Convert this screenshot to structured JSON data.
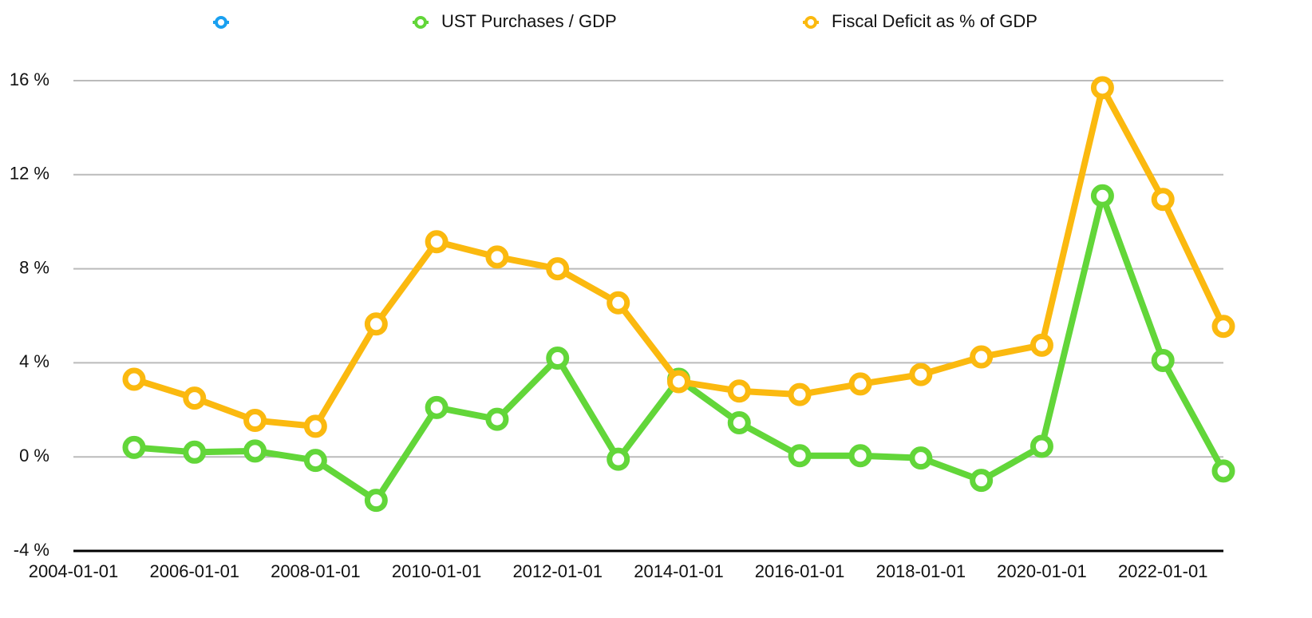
{
  "chart_data": {
    "type": "line",
    "x": [
      "2005-01-01",
      "2006-01-01",
      "2007-01-01",
      "2008-01-01",
      "2009-01-01",
      "2010-01-01",
      "2011-01-01",
      "2012-01-01",
      "2013-01-01",
      "2014-01-01",
      "2015-01-01",
      "2016-01-01",
      "2017-01-01",
      "2018-01-01",
      "2019-01-01",
      "2020-01-01",
      "2021-01-01",
      "2022-01-01",
      "2023-01-01"
    ],
    "series": [
      {
        "color": "#1aa0f0",
        "values": [
          null,
          null,
          null,
          null,
          null,
          null,
          null,
          null,
          null,
          null,
          null,
          null,
          null,
          null,
          null,
          null,
          null,
          null,
          null
        ]
      },
      {
        "name": "UST Purchases / GDP",
        "color": "#62d639",
        "values": [
          0.4,
          0.2,
          0.25,
          -0.15,
          -1.85,
          2.1,
          1.6,
          4.2,
          -0.1,
          3.3,
          1.45,
          0.05,
          0.05,
          -0.05,
          -1.0,
          0.45,
          11.1,
          4.1,
          -0.6
        ]
      },
      {
        "name": "Fiscal Deficit as % of GDP",
        "color": "#fbb90f",
        "values": [
          3.3,
          2.5,
          1.55,
          1.3,
          5.65,
          9.15,
          8.5,
          8.0,
          6.55,
          3.2,
          2.8,
          2.65,
          3.1,
          3.5,
          4.25,
          4.75,
          15.7,
          10.95,
          5.55
        ]
      }
    ],
    "xlim": [
      "2004-01-01",
      "2023-01-01"
    ],
    "xticks": [
      "2004-01-01",
      "2006-01-01",
      "2008-01-01",
      "2010-01-01",
      "2012-01-01",
      "2014-01-01",
      "2016-01-01",
      "2018-01-01",
      "2020-01-01",
      "2022-01-01"
    ],
    "ylim": [
      -4,
      16
    ],
    "yticks": [
      {
        "value": -4,
        "label": "-4 %"
      },
      {
        "value": 0,
        "label": "0 %"
      },
      {
        "value": 4,
        "label": "4 %"
      },
      {
        "value": 8,
        "label": "8 %"
      },
      {
        "value": 12,
        "label": "12 %"
      },
      {
        "value": 16,
        "label": "16 %"
      }
    ],
    "grid": true,
    "legend": "top"
  }
}
